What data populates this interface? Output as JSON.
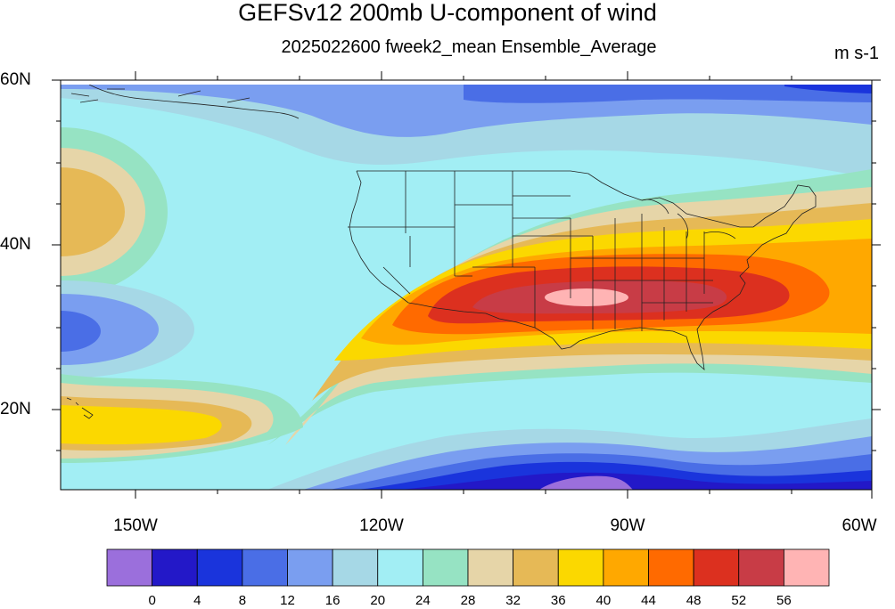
{
  "header": {
    "title": "GEFSv12 200mb U-component of wind",
    "subtitle": "2025022600 fweek2_mean Ensemble_Average",
    "units": "m s-1"
  },
  "axes": {
    "lat_labels": [
      "60N",
      "40N",
      "20N"
    ],
    "lon_labels": [
      "150W",
      "120W",
      "90W",
      "60W"
    ]
  },
  "colorbar": {
    "colors": [
      "#9b6fdc",
      "#2318c8",
      "#1a34dc",
      "#4a6ee6",
      "#7a9ef0",
      "#a6d8e6",
      "#a2eef4",
      "#96e3c3",
      "#e6d5a8",
      "#e6b956",
      "#fbd800",
      "#ffa800",
      "#ff6a00",
      "#dc301f",
      "#c83c46",
      "#ffb4b4"
    ],
    "labels": [
      "0",
      "4",
      "8",
      "12",
      "16",
      "20",
      "24",
      "28",
      "32",
      "36",
      "40",
      "44",
      "48",
      "52",
      "56"
    ]
  },
  "map_data": {
    "field": "200mb U-component of wind",
    "units": "m s-1",
    "domain": {
      "lon_range": [
        "160W",
        "60W"
      ],
      "lat_range": [
        "10N",
        "60N"
      ]
    },
    "features": [
      {
        "region": "jet core over southern US",
        "range": "56+"
      },
      {
        "region": "southeastern US",
        "range": "48-56"
      },
      {
        "region": "subtropical Pacific near Hawaii",
        "range": "36-44"
      },
      {
        "region": "northeastern Pacific",
        "range": "32-40"
      },
      {
        "region": "Caribbean / tropical Atlantic",
        "range": "0-12"
      }
    ]
  }
}
